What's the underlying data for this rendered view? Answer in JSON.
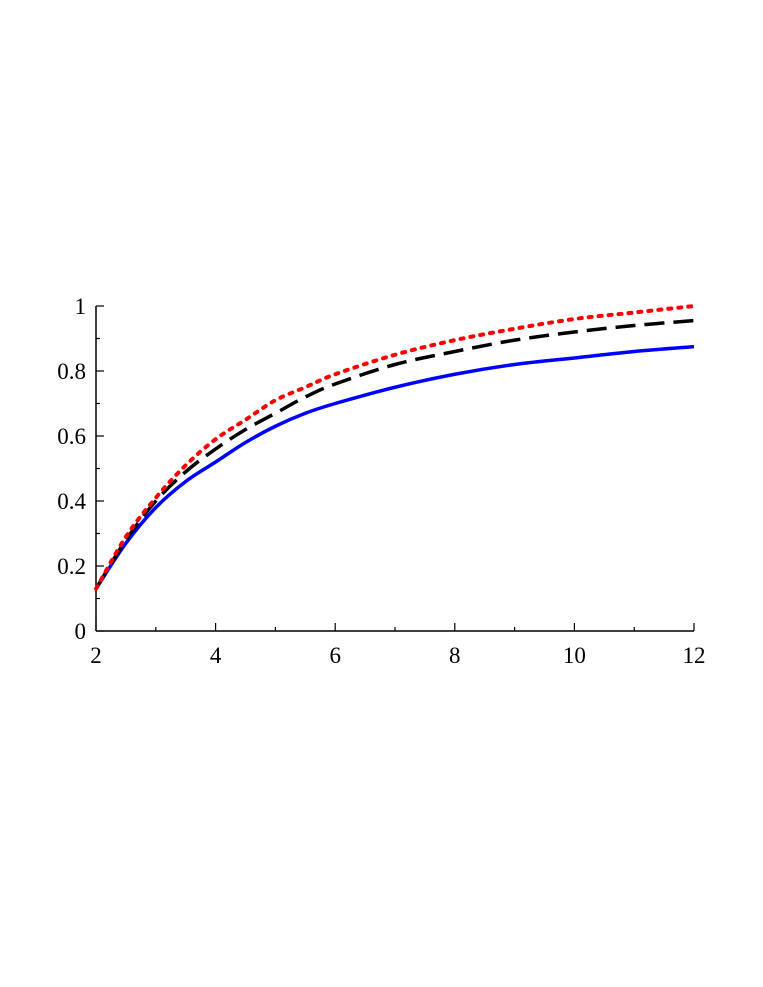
{
  "chart_data": {
    "type": "line",
    "title": "",
    "xlabel": "",
    "ylabel": "",
    "xlim": [
      2,
      12
    ],
    "ylim": [
      0,
      1
    ],
    "x_ticks": [
      2,
      4,
      6,
      8,
      10,
      12
    ],
    "y_ticks": [
      0,
      0.2,
      0.4,
      0.6,
      0.8,
      1
    ],
    "x_tick_labels": [
      "2",
      "4",
      "6",
      "8",
      "10",
      "12"
    ],
    "y_tick_labels": [
      "0",
      "0.2",
      "0.4",
      "0.6",
      "0.8",
      "1"
    ],
    "grid": false,
    "legend": "none",
    "series": [
      {
        "style": "solid",
        "color": "#0000ff",
        "x": [
          2,
          2.5,
          3,
          3.5,
          4,
          4.5,
          5,
          5.5,
          6,
          7,
          8,
          9,
          10,
          11,
          12
        ],
        "y": [
          0.13,
          0.27,
          0.38,
          0.46,
          0.52,
          0.58,
          0.63,
          0.67,
          0.7,
          0.75,
          0.79,
          0.82,
          0.84,
          0.86,
          0.875
        ]
      },
      {
        "style": "dashed",
        "color": "#000000",
        "x": [
          2,
          2.5,
          3,
          3.5,
          4,
          4.5,
          5,
          5.5,
          6,
          7,
          8,
          9,
          10,
          11,
          12
        ],
        "y": [
          0.13,
          0.28,
          0.4,
          0.49,
          0.56,
          0.62,
          0.67,
          0.72,
          0.76,
          0.82,
          0.86,
          0.895,
          0.92,
          0.94,
          0.955
        ]
      },
      {
        "style": "dotted",
        "color": "#ff0000",
        "x": [
          2,
          2.5,
          3,
          3.5,
          4,
          4.5,
          5,
          5.5,
          6,
          7,
          8,
          9,
          10,
          11,
          12
        ],
        "y": [
          0.13,
          0.29,
          0.41,
          0.51,
          0.59,
          0.65,
          0.71,
          0.75,
          0.79,
          0.85,
          0.895,
          0.93,
          0.96,
          0.98,
          1.0
        ]
      }
    ]
  }
}
